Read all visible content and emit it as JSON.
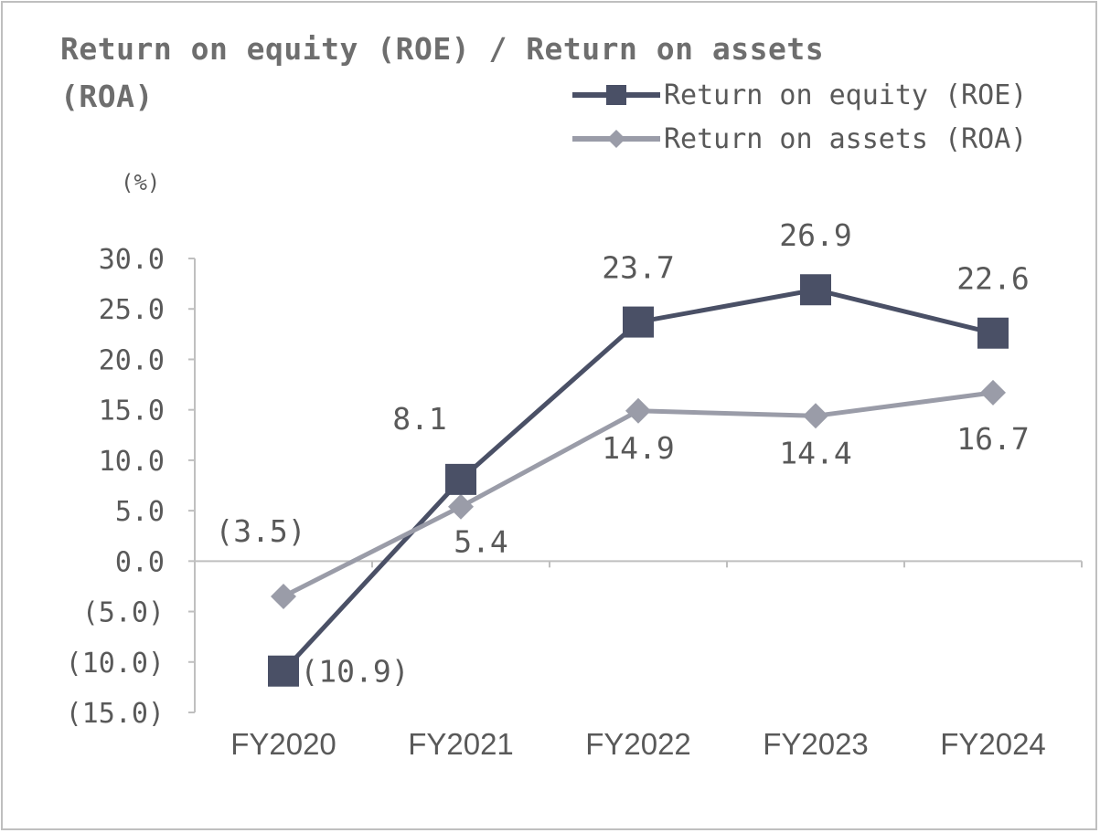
{
  "chart_data": {
    "type": "line",
    "title": "Return on equity (ROE) / Return on assets (ROA)",
    "ylabel": "(%)",
    "categories": [
      "FY2020",
      "FY2021",
      "FY2022",
      "FY2023",
      "FY2024"
    ],
    "ylim": [
      -15,
      30
    ],
    "yticks": [
      30,
      25,
      20,
      15,
      10,
      5,
      0,
      -5,
      -10,
      -15
    ],
    "ytick_labels": [
      "30.0",
      "25.0",
      "20.0",
      "15.0",
      "10.0",
      "5.0",
      "0.0",
      "(5.0)",
      "(10.0)",
      "(15.0)"
    ],
    "legend_position": "top-right",
    "series": [
      {
        "name": "Return on equity (ROE)",
        "values": [
          -10.9,
          8.1,
          23.7,
          26.9,
          22.6
        ],
        "labels": [
          "(10.9)",
          "8.1",
          "23.7",
          "26.9",
          "22.6"
        ],
        "marker": "square",
        "color": "#4a5066"
      },
      {
        "name": "Return on assets (ROA)",
        "values": [
          -3.5,
          5.4,
          14.9,
          14.4,
          16.7
        ],
        "labels": [
          "(3.5)",
          "5.4",
          "14.9",
          "14.4",
          "16.7"
        ],
        "marker": "diamond",
        "color": "#9a9ca8"
      }
    ]
  }
}
